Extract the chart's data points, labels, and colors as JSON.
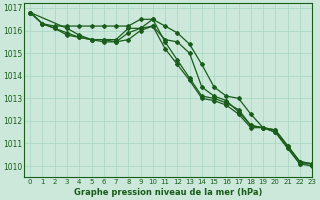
{
  "title": "Graphe pression niveau de la mer (hPa)",
  "xlim": [
    -0.5,
    23
  ],
  "ylim": [
    1009.5,
    1017.2
  ],
  "yticks": [
    1010,
    1011,
    1012,
    1013,
    1014,
    1015,
    1016,
    1017
  ],
  "xticks": [
    0,
    1,
    2,
    3,
    4,
    5,
    6,
    7,
    8,
    9,
    10,
    11,
    12,
    13,
    14,
    15,
    16,
    17,
    18,
    19,
    20,
    21,
    22,
    23
  ],
  "bg_color": "#cbe8da",
  "grid_color": "#a8d4c2",
  "line_color": "#1a5c1a",
  "series": [
    {
      "x": [
        0,
        1,
        2,
        3,
        4,
        5,
        6,
        7,
        8,
        9,
        10,
        11,
        12,
        13,
        14,
        15,
        16,
        17,
        18,
        19,
        20,
        21,
        22,
        23
      ],
      "y": [
        1016.8,
        1016.3,
        1016.2,
        1016.2,
        1016.2,
        1016.2,
        1016.2,
        1016.2,
        1016.2,
        1016.5,
        1016.5,
        1016.2,
        1015.9,
        1015.4,
        1014.5,
        1013.5,
        1013.1,
        1013.0,
        1012.3,
        1011.7,
        1011.6,
        1010.9,
        1010.2,
        1010.1
      ],
      "marker": "D",
      "ms": 2.0,
      "lw": 0.9
    },
    {
      "x": [
        0,
        1,
        2,
        3,
        4,
        5,
        6,
        7,
        8,
        9,
        10,
        11,
        12,
        13,
        14,
        15,
        16,
        17,
        18,
        19,
        20,
        21,
        22,
        23
      ],
      "y": [
        1016.8,
        1016.3,
        1016.1,
        1015.9,
        1015.7,
        1015.6,
        1015.6,
        1015.6,
        1016.1,
        1016.1,
        1016.5,
        1015.5,
        1014.7,
        1013.9,
        1013.1,
        1013.0,
        1012.8,
        1012.5,
        1011.8,
        1011.7,
        1011.6,
        1010.9,
        1010.2,
        1010.1
      ],
      "marker": "D",
      "ms": 2.0,
      "lw": 0.9
    },
    {
      "x": [
        0,
        1,
        2,
        3,
        4,
        5,
        6,
        7,
        8,
        9,
        10,
        11,
        12,
        13,
        14,
        15,
        16,
        17,
        18,
        19,
        20,
        21,
        22,
        23
      ],
      "y": [
        1016.8,
        1016.3,
        1016.1,
        1015.8,
        1015.7,
        1015.6,
        1015.6,
        1015.5,
        1015.9,
        1016.1,
        1016.2,
        1015.2,
        1014.5,
        1013.8,
        1013.0,
        1012.9,
        1012.7,
        1012.3,
        1011.7,
        1011.7,
        1011.5,
        1010.8,
        1010.1,
        1010.1
      ],
      "marker": "D",
      "ms": 2.0,
      "lw": 0.9
    },
    {
      "x": [
        0,
        3,
        4,
        5,
        6,
        7,
        8,
        9,
        10,
        11,
        12,
        13,
        14,
        15,
        16,
        17,
        18,
        19,
        20,
        21,
        22,
        23
      ],
      "y": [
        1016.8,
        1016.1,
        1015.8,
        1015.6,
        1015.5,
        1015.5,
        1015.6,
        1016.0,
        1016.2,
        1015.6,
        1015.5,
        1015.0,
        1013.5,
        1013.1,
        1012.9,
        1012.4,
        1011.8,
        1011.7,
        1011.5,
        1010.8,
        1010.1,
        1010.0
      ],
      "marker": "D",
      "ms": 2.0,
      "lw": 0.9
    }
  ]
}
